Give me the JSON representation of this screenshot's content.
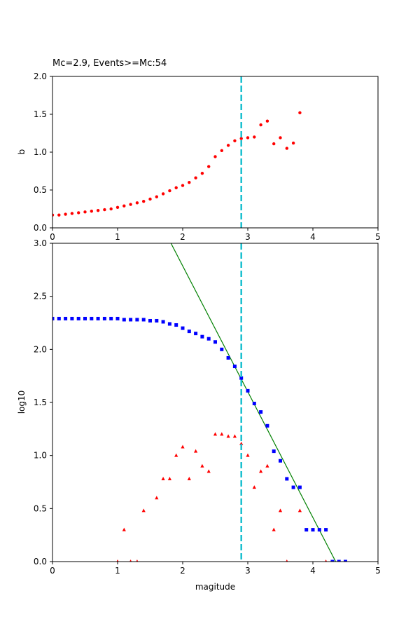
{
  "chart_data": [
    {
      "type": "scatter",
      "title": "Mc=2.9, Events>=Mc:54",
      "xlabel": "",
      "ylabel": "b",
      "xlim": [
        0,
        5
      ],
      "ylim": [
        0,
        2
      ],
      "xticks": [
        "0",
        "1",
        "2",
        "3",
        "4",
        "5"
      ],
      "yticks": [
        "0.0",
        "0.5",
        "1.0",
        "1.5",
        "2.0"
      ],
      "grid": false,
      "mc_line": 2.9,
      "series": [
        {
          "color": "#ff0000",
          "marker": "circle",
          "x": [
            0,
            0.1,
            0.2,
            0.3,
            0.4,
            0.5,
            0.6,
            0.7,
            0.8,
            0.9,
            1.0,
            1.1,
            1.2,
            1.3,
            1.4,
            1.5,
            1.6,
            1.7,
            1.8,
            1.9,
            2.0,
            2.1,
            2.2,
            2.3,
            2.4,
            2.5,
            2.6,
            2.7,
            2.8,
            2.9,
            3.0,
            3.1,
            3.2,
            3.3,
            3.4,
            3.5,
            3.6,
            3.7,
            3.8
          ],
          "y": [
            0.17,
            0.17,
            0.18,
            0.19,
            0.2,
            0.21,
            0.22,
            0.23,
            0.24,
            0.25,
            0.27,
            0.29,
            0.31,
            0.33,
            0.35,
            0.38,
            0.41,
            0.45,
            0.49,
            0.53,
            0.56,
            0.6,
            0.66,
            0.72,
            0.81,
            0.94,
            1.02,
            1.09,
            1.15,
            1.18,
            1.19,
            1.2,
            1.36,
            1.41,
            1.11,
            1.19,
            1.05,
            1.12,
            1.52
          ]
        }
      ]
    },
    {
      "type": "scatter",
      "title": "",
      "xlabel": "magitude",
      "ylabel": "log10",
      "xlim": [
        0,
        5
      ],
      "ylim": [
        0,
        3
      ],
      "xticks": [
        "0",
        "1",
        "2",
        "3",
        "4",
        "5"
      ],
      "yticks": [
        "0.0",
        "0.5",
        "1.0",
        "1.5",
        "2.0",
        "2.5",
        "3.0"
      ],
      "grid": false,
      "mc_line": 2.9,
      "fit_line": {
        "color": "#008000",
        "x": [
          1.82,
          4.35
        ],
        "y": [
          3.0,
          0.0
        ]
      },
      "series": [
        {
          "color": "#0000ff",
          "marker": "square",
          "x": [
            0,
            0.1,
            0.2,
            0.3,
            0.4,
            0.5,
            0.6,
            0.7,
            0.8,
            0.9,
            1.0,
            1.1,
            1.2,
            1.3,
            1.4,
            1.5,
            1.6,
            1.7,
            1.8,
            1.9,
            2.0,
            2.1,
            2.2,
            2.3,
            2.4,
            2.5,
            2.6,
            2.7,
            2.8,
            2.9,
            3.0,
            3.1,
            3.2,
            3.3,
            3.4,
            3.5,
            3.6,
            3.7,
            3.8,
            3.9,
            4.0,
            4.1,
            4.2,
            4.3,
            4.4,
            4.5
          ],
          "y": [
            2.29,
            2.29,
            2.29,
            2.29,
            2.29,
            2.29,
            2.29,
            2.29,
            2.29,
            2.29,
            2.29,
            2.28,
            2.28,
            2.28,
            2.28,
            2.27,
            2.27,
            2.26,
            2.24,
            2.23,
            2.2,
            2.17,
            2.15,
            2.12,
            2.1,
            2.07,
            2.0,
            1.92,
            1.84,
            1.73,
            1.61,
            1.49,
            1.41,
            1.28,
            1.04,
            0.95,
            0.78,
            0.7,
            0.7,
            0.3,
            0.3,
            0.3,
            0.3,
            0.0,
            0.0,
            0.0
          ]
        },
        {
          "color": "#ff0000",
          "marker": "triangle",
          "x": [
            1.0,
            1.1,
            1.2,
            1.3,
            1.4,
            1.6,
            1.7,
            1.8,
            1.9,
            2.0,
            2.1,
            2.2,
            2.3,
            2.4,
            2.5,
            2.6,
            2.7,
            2.8,
            2.9,
            3.0,
            3.1,
            3.2,
            3.3,
            3.4,
            3.5,
            3.6,
            3.8,
            4.2
          ],
          "y": [
            0.0,
            0.3,
            0.0,
            0.0,
            0.48,
            0.6,
            0.78,
            0.78,
            1.0,
            1.08,
            0.78,
            1.04,
            0.9,
            0.85,
            1.2,
            1.2,
            1.18,
            1.18,
            1.11,
            1.0,
            0.7,
            0.85,
            0.9,
            0.3,
            0.48,
            0.0,
            0.48,
            0.0
          ]
        }
      ]
    }
  ]
}
